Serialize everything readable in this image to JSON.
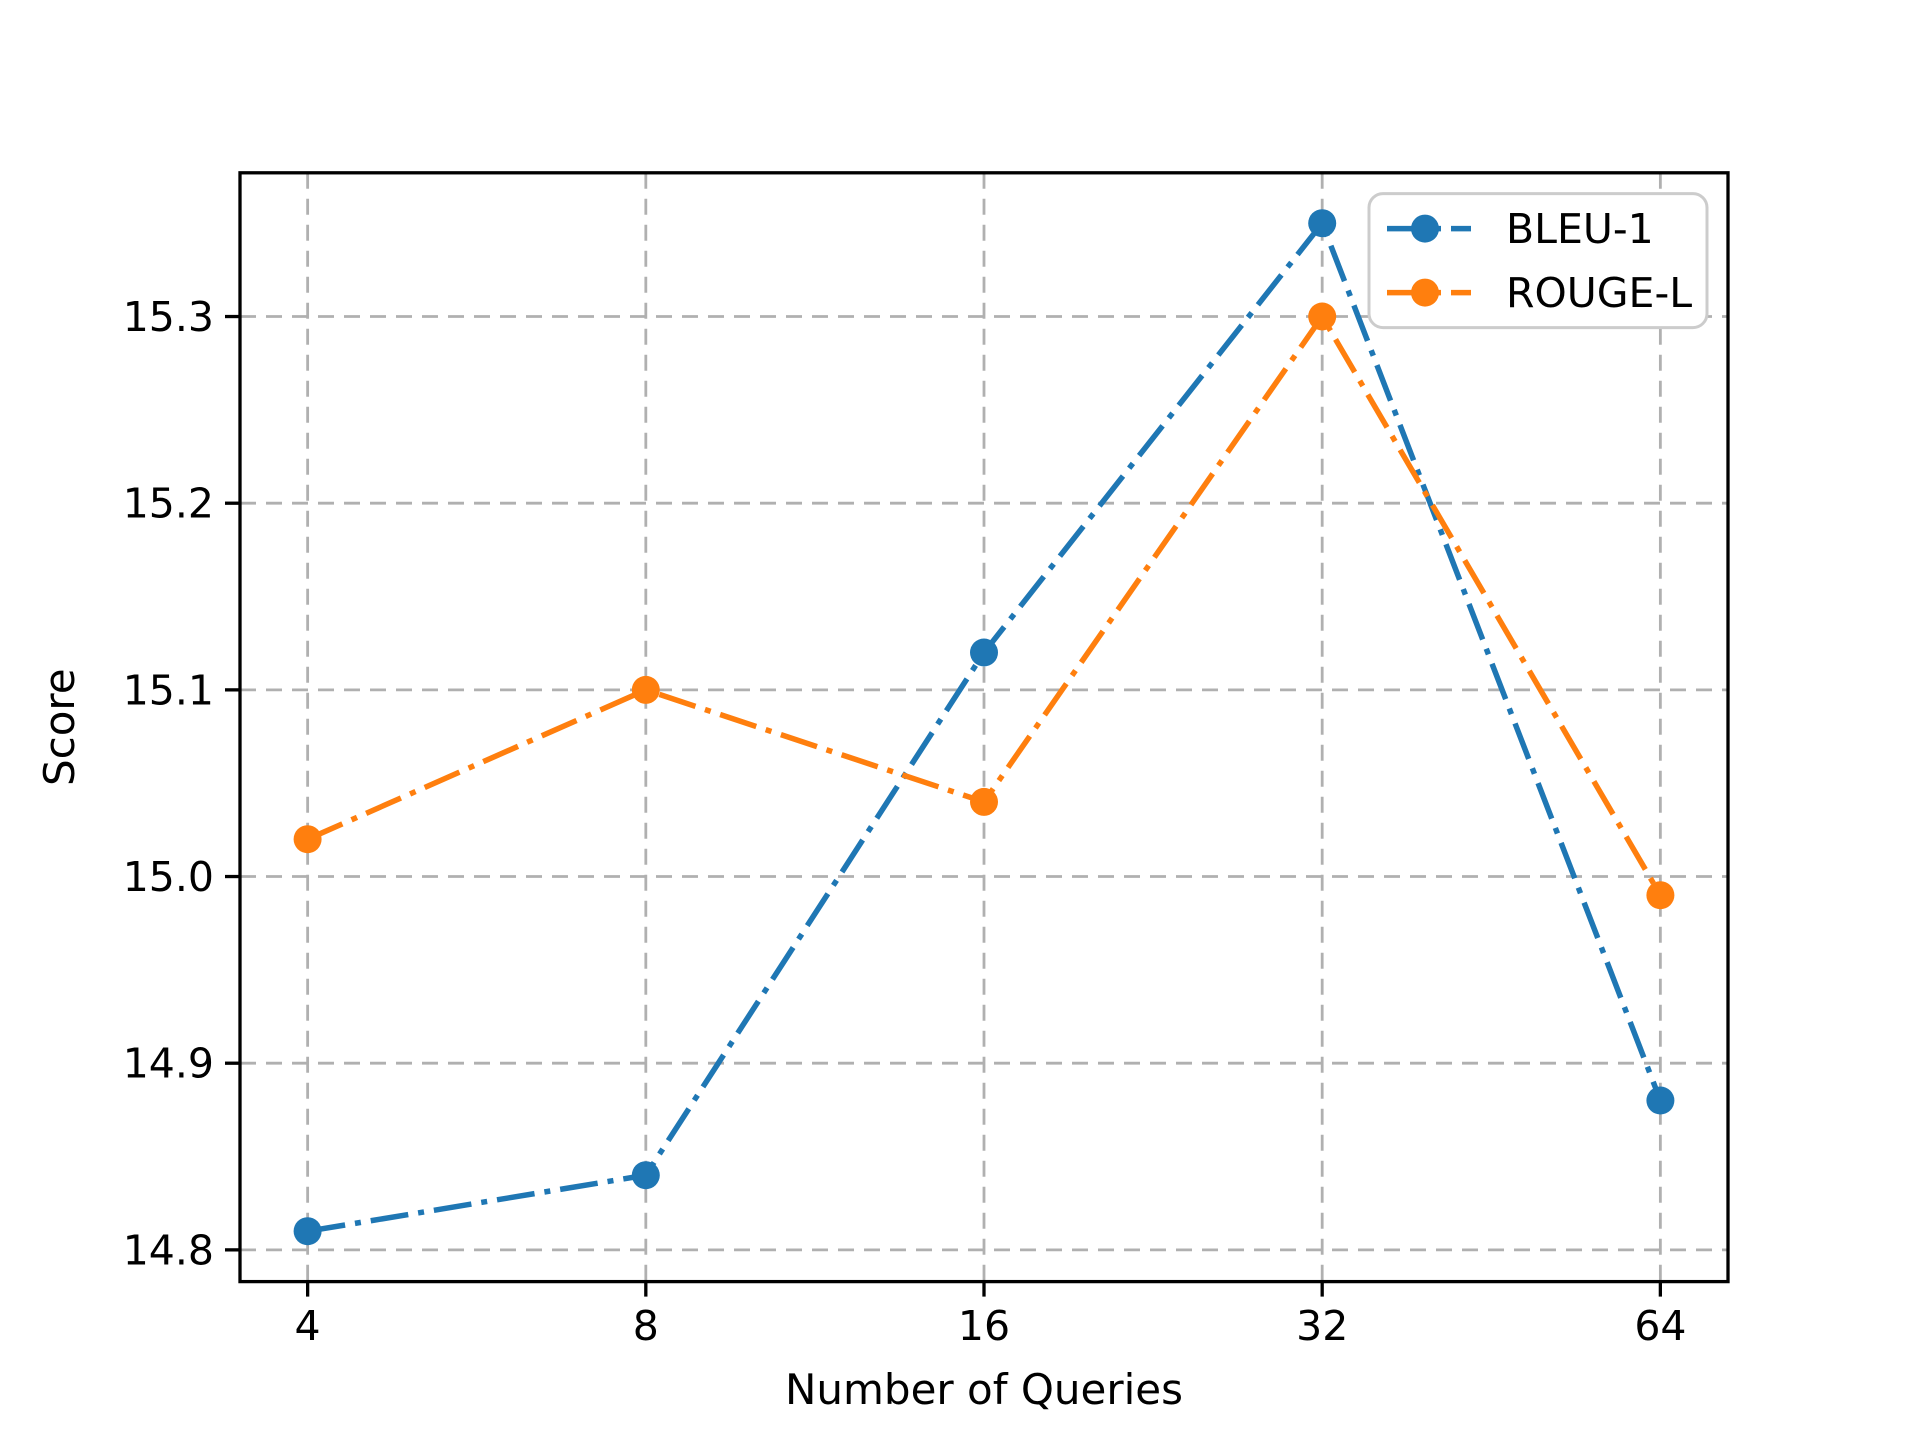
{
  "chart_data": {
    "type": "line",
    "title": "",
    "xlabel": "Number of Queries",
    "ylabel": "Score",
    "x": [
      4,
      8,
      16,
      32,
      64
    ],
    "xtick_labels": [
      "4",
      "8",
      "16",
      "32",
      "64"
    ],
    "x_scale": "log2",
    "xlim_log2": [
      1.8,
      6.2
    ],
    "yticks": [
      14.8,
      14.9,
      15.0,
      15.1,
      15.2,
      15.3
    ],
    "ytick_labels": [
      "14.8",
      "14.9",
      "15.0",
      "15.1",
      "15.2",
      "15.3"
    ],
    "ylim": [
      14.783,
      15.377
    ],
    "grid": true,
    "grid_line_style": "dashed",
    "legend_position": "upper right",
    "series": [
      {
        "name": "BLEU-1",
        "color": "#1f77b4",
        "line_style": "dashdot",
        "marker": "circle",
        "values": [
          14.81,
          14.84,
          15.12,
          15.35,
          14.88
        ]
      },
      {
        "name": "ROUGE-L",
        "color": "#ff7f0e",
        "line_style": "dashdot",
        "marker": "circle",
        "values": [
          15.02,
          15.1,
          15.04,
          15.3,
          14.99
        ]
      }
    ],
    "colors": {
      "grid": "#b0b0b0",
      "axis": "#000000",
      "legend_border": "#cccccc",
      "legend_background": "#ffffff",
      "background": "#ffffff"
    }
  }
}
